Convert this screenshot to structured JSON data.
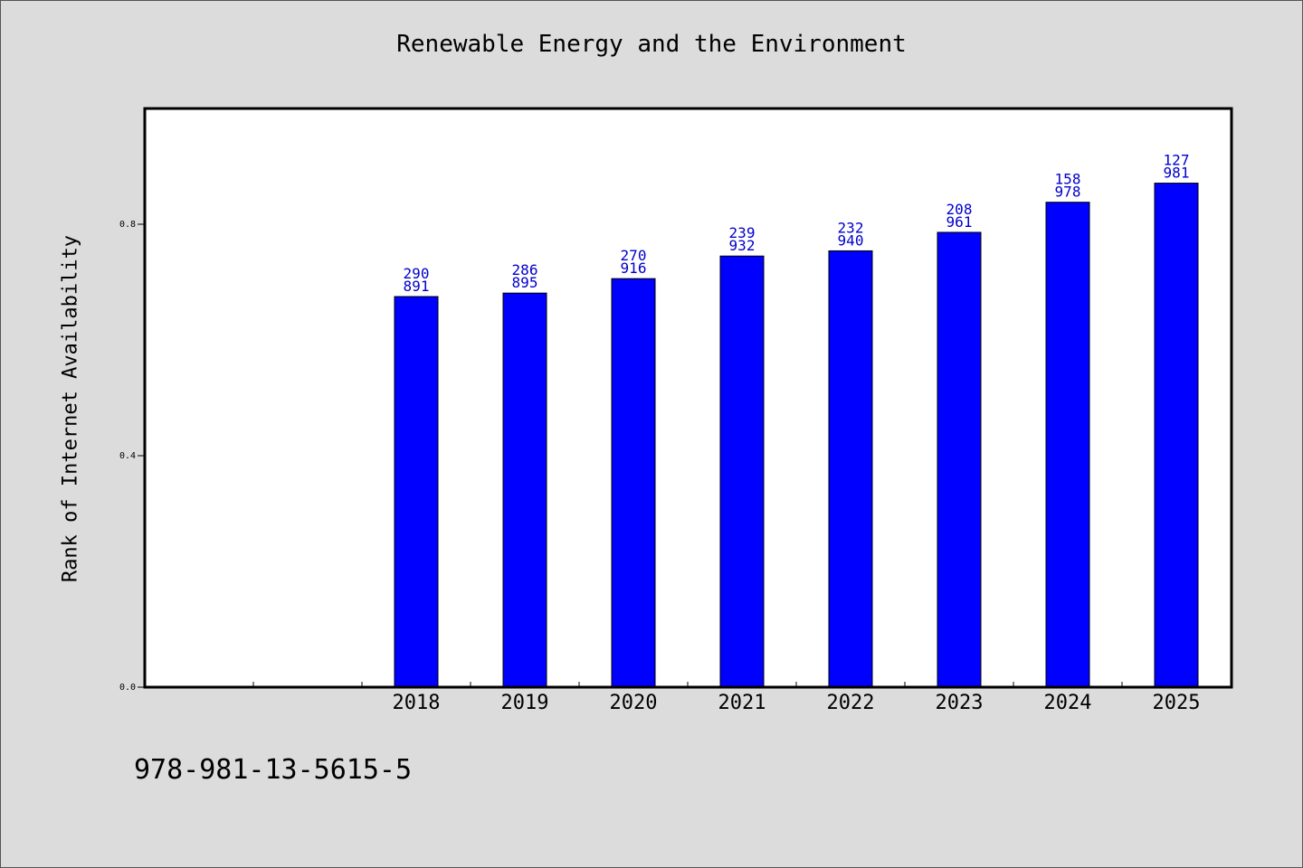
{
  "chart_data": {
    "type": "bar",
    "title": "Renewable Energy and the Environment",
    "xlabel": "",
    "ylabel": "Rank of Internet Availability",
    "categories": [
      "2018",
      "2019",
      "2020",
      "2021",
      "2022",
      "2023",
      "2024",
      "2025"
    ],
    "values": [
      0.675,
      0.681,
      0.706,
      0.745,
      0.754,
      0.786,
      0.838,
      0.871
    ],
    "data_labels": [
      [
        "290",
        "891"
      ],
      [
        "286",
        "895"
      ],
      [
        "270",
        "916"
      ],
      [
        "239",
        "932"
      ],
      [
        "232",
        "940"
      ],
      [
        "208",
        "961"
      ],
      [
        "158",
        "978"
      ],
      [
        "127",
        "981"
      ]
    ],
    "yticks": [
      "0.0",
      "0.4",
      "0.8"
    ],
    "ylim": [
      0,
      1.0
    ],
    "grid": false,
    "legend": "none",
    "bar_color": "#0000ff",
    "label_color": "#0000cc"
  },
  "footer_text": "978-981-13-5615-5"
}
